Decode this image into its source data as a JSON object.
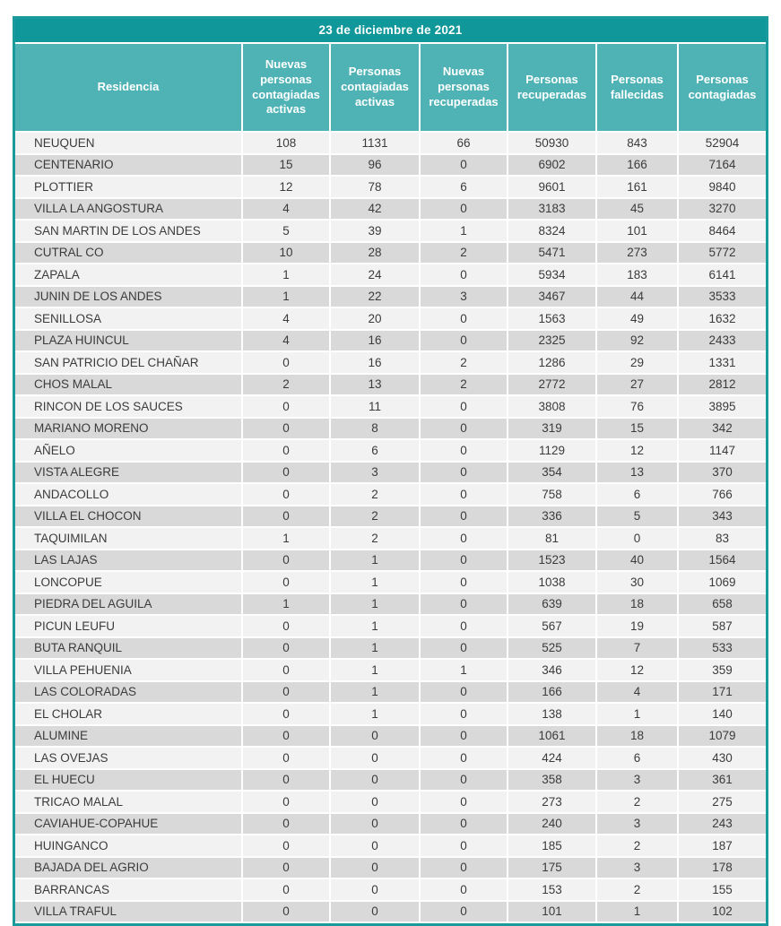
{
  "colors": {
    "outer_border": "#1b9a9d",
    "title_bg": "#0f979a",
    "header_bg": "#4fb3b6",
    "header_text": "#ffffff",
    "row_light": "#f2f2f2",
    "row_dark": "#d9d9d9",
    "cell_text": "#3b3b3b"
  },
  "chart_data": {
    "type": "table",
    "title": "23 de diciembre de 2021",
    "columns": [
      "Residencia",
      "Nuevas personas contagiadas activas",
      "Personas contagiadas activas",
      "Nuevas personas recuperadas",
      "Personas recuperadas",
      "Personas fallecidas",
      "Personas contagiadas"
    ],
    "rows": [
      [
        "NEUQUEN",
        108,
        1131,
        66,
        50930,
        843,
        52904
      ],
      [
        "CENTENARIO",
        15,
        96,
        0,
        6902,
        166,
        7164
      ],
      [
        "PLOTTIER",
        12,
        78,
        6,
        9601,
        161,
        9840
      ],
      [
        "VILLA LA ANGOSTURA",
        4,
        42,
        0,
        3183,
        45,
        3270
      ],
      [
        "SAN MARTIN DE LOS ANDES",
        5,
        39,
        1,
        8324,
        101,
        8464
      ],
      [
        "CUTRAL CO",
        10,
        28,
        2,
        5471,
        273,
        5772
      ],
      [
        "ZAPALA",
        1,
        24,
        0,
        5934,
        183,
        6141
      ],
      [
        "JUNIN DE LOS ANDES",
        1,
        22,
        3,
        3467,
        44,
        3533
      ],
      [
        "SENILLOSA",
        4,
        20,
        0,
        1563,
        49,
        1632
      ],
      [
        "PLAZA HUINCUL",
        4,
        16,
        0,
        2325,
        92,
        2433
      ],
      [
        "SAN PATRICIO DEL CHAÑAR",
        0,
        16,
        2,
        1286,
        29,
        1331
      ],
      [
        "CHOS MALAL",
        2,
        13,
        2,
        2772,
        27,
        2812
      ],
      [
        "RINCON DE LOS SAUCES",
        0,
        11,
        0,
        3808,
        76,
        3895
      ],
      [
        "MARIANO MORENO",
        0,
        8,
        0,
        319,
        15,
        342
      ],
      [
        "AÑELO",
        0,
        6,
        0,
        1129,
        12,
        1147
      ],
      [
        "VISTA ALEGRE",
        0,
        3,
        0,
        354,
        13,
        370
      ],
      [
        "ANDACOLLO",
        0,
        2,
        0,
        758,
        6,
        766
      ],
      [
        "VILLA EL CHOCON",
        0,
        2,
        0,
        336,
        5,
        343
      ],
      [
        "TAQUIMILAN",
        1,
        2,
        0,
        81,
        0,
        83
      ],
      [
        "LAS LAJAS",
        0,
        1,
        0,
        1523,
        40,
        1564
      ],
      [
        "LONCOPUE",
        0,
        1,
        0,
        1038,
        30,
        1069
      ],
      [
        "PIEDRA DEL AGUILA",
        1,
        1,
        0,
        639,
        18,
        658
      ],
      [
        "PICUN LEUFU",
        0,
        1,
        0,
        567,
        19,
        587
      ],
      [
        "BUTA RANQUIL",
        0,
        1,
        0,
        525,
        7,
        533
      ],
      [
        "VILLA PEHUENIA",
        0,
        1,
        1,
        346,
        12,
        359
      ],
      [
        "LAS COLORADAS",
        0,
        1,
        0,
        166,
        4,
        171
      ],
      [
        "EL CHOLAR",
        0,
        1,
        0,
        138,
        1,
        140
      ],
      [
        "ALUMINE",
        0,
        0,
        0,
        1061,
        18,
        1079
      ],
      [
        "LAS OVEJAS",
        0,
        0,
        0,
        424,
        6,
        430
      ],
      [
        "EL HUECU",
        0,
        0,
        0,
        358,
        3,
        361
      ],
      [
        "TRICAO MALAL",
        0,
        0,
        0,
        273,
        2,
        275
      ],
      [
        "CAVIAHUE-COPAHUE",
        0,
        0,
        0,
        240,
        3,
        243
      ],
      [
        "HUINGANCO",
        0,
        0,
        0,
        185,
        2,
        187
      ],
      [
        "BAJADA DEL AGRIO",
        0,
        0,
        0,
        175,
        3,
        178
      ],
      [
        "BARRANCAS",
        0,
        0,
        0,
        153,
        2,
        155
      ],
      [
        "VILLA TRAFUL",
        0,
        0,
        0,
        101,
        1,
        102
      ]
    ]
  }
}
